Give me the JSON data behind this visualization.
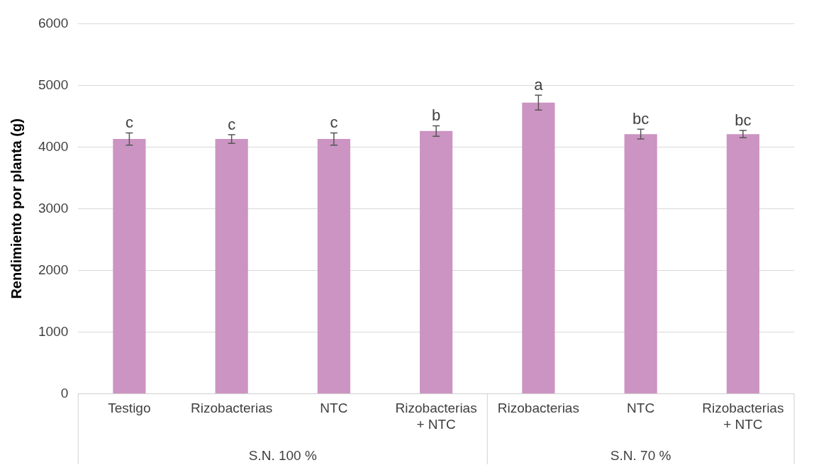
{
  "chart_data": {
    "type": "bar",
    "ylabel": "Rendimiento por planta (g)",
    "categories": [
      "Testigo",
      "Rizobacterias",
      "NTC",
      "Rizobacterias + NTC",
      "Rizobacterias",
      "NTC",
      "Rizobacterias + NTC"
    ],
    "series": [
      {
        "color": "#cc94c2",
        "values": [
          4130,
          4130,
          4130,
          4260,
          4720,
          4210,
          4210
        ],
        "errors": [
          100,
          70,
          100,
          85,
          120,
          80,
          60
        ],
        "value_labels": [
          "c",
          "c",
          "c",
          "b",
          "a",
          "bc",
          "bc"
        ]
      }
    ],
    "annotations": [
      "S.N. 100 %",
      "S.N. 70 %"
    ],
    "ylim": [
      0,
      6000
    ],
    "yticks": [
      0,
      1000,
      2000,
      3000,
      4000,
      5000,
      6000
    ],
    "grid": "y",
    "legend": false
  }
}
